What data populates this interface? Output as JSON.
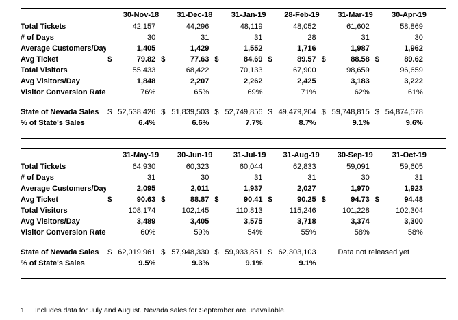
{
  "currency_symbol": "$",
  "colors": {
    "text": "#000000",
    "rule": "#000000",
    "background": "#ffffff"
  },
  "row_labels": [
    "Total Tickets",
    "# of Days",
    "Average Customers/Day",
    "Avg Ticket",
    "Total Visitors",
    "Avg Visitors/Day",
    "Visitor Conversion Rate"
  ],
  "sales_row_labels": [
    "State of Nevada Sales",
    "% of State's Sales"
  ],
  "footnote": {
    "marker": "1",
    "text": "Includes data for July and August. Nevada sales for September are unavailable."
  },
  "tables": [
    {
      "columns": [
        "30-Nov-18",
        "31-Dec-18",
        "31-Jan-19",
        "28-Feb-19",
        "31-Mar-19",
        "30-Apr-19"
      ],
      "rows": {
        "total_tickets": [
          "42,157",
          "44,296",
          "48,119",
          "48,052",
          "61,602",
          "58,869"
        ],
        "days": [
          "30",
          "31",
          "31",
          "28",
          "31",
          "30"
        ],
        "avg_customers_day": [
          "1,405",
          "1,429",
          "1,552",
          "1,716",
          "1,987",
          "1,962"
        ],
        "avg_ticket": [
          "79.82",
          "77.63",
          "84.69",
          "89.57",
          "88.58",
          "89.62"
        ],
        "total_visitors": [
          "55,433",
          "68,422",
          "70,133",
          "67,900",
          "98,659",
          "96,659"
        ],
        "avg_visitors_day": [
          "1,848",
          "2,207",
          "2,262",
          "2,425",
          "3,183",
          "3,222"
        ],
        "conversion": [
          "76%",
          "65%",
          "69%",
          "71%",
          "62%",
          "61%"
        ]
      },
      "nevada_sales": [
        "52,538,426",
        "51,839,503",
        "52,749,856",
        "49,479,204",
        "59,748,815",
        "54,874,578"
      ],
      "pct_state_sales": [
        "6.4%",
        "6.6%",
        "7.7%",
        "8.7%",
        "9.1%",
        "9.6%"
      ]
    },
    {
      "columns": [
        "31-May-19",
        "30-Jun-19",
        "31-Jul-19",
        "31-Aug-19",
        "30-Sep-19",
        "31-Oct-19"
      ],
      "rows": {
        "total_tickets": [
          "64,930",
          "60,323",
          "60,044",
          "62,833",
          "59,091",
          "59,605"
        ],
        "days": [
          "31",
          "30",
          "31",
          "31",
          "30",
          "31"
        ],
        "avg_customers_day": [
          "2,095",
          "2,011",
          "1,937",
          "2,027",
          "1,970",
          "1,923"
        ],
        "avg_ticket": [
          "90.63",
          "88.87",
          "90.41",
          "90.25",
          "94.73",
          "94.48"
        ],
        "total_visitors": [
          "108,174",
          "102,145",
          "110,813",
          "115,246",
          "101,228",
          "102,304"
        ],
        "avg_visitors_day": [
          "3,489",
          "3,405",
          "3,575",
          "3,718",
          "3,374",
          "3,300"
        ],
        "conversion": [
          "60%",
          "59%",
          "54%",
          "55%",
          "58%",
          "58%"
        ]
      },
      "nevada_sales": [
        "62,019,961",
        "57,948,330",
        "59,933,851",
        "62,303,103"
      ],
      "nevada_sales_note": "Data not released yet",
      "pct_state_sales": [
        "9.5%",
        "9.3%",
        "9.1%",
        "9.1%"
      ]
    }
  ]
}
